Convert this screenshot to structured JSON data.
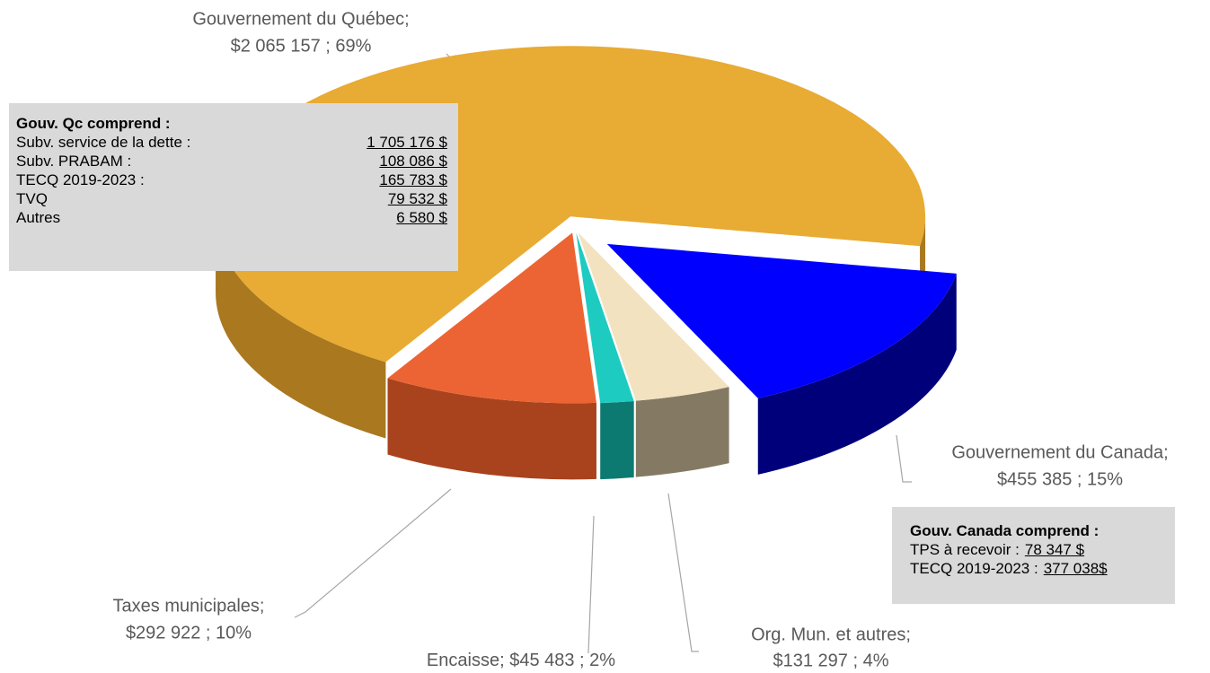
{
  "chart_data": {
    "type": "pie3d",
    "categories": [
      "Gouvernement du Québec;",
      "Gouvernement du Canada;",
      "Org. Mun. et autres;",
      "Encaisse;",
      "Taxes municipales;"
    ],
    "values": [
      2065157,
      455385,
      131297,
      45483,
      292922
    ],
    "value_labels": [
      "$2 065 157 ; 69%",
      "$455 385 ; 15%",
      "$131 297 ; 4%",
      "$45 483 ; 2%",
      "$292 922 ; 10%"
    ],
    "colors": [
      "#e8ab33",
      "#0000ff",
      "#f3e2c0",
      "#1ecbc0",
      "#ec6433"
    ],
    "side_colors": [
      "#a9781f",
      "#00007a",
      "#847a63",
      "#0d7a72",
      "#a8431e"
    ],
    "annotations": [
      {
        "title": "Gouv. Qc comprend :",
        "rows": [
          [
            "Subv. service de la dette :",
            "1 705 176 $"
          ],
          [
            "Subv. PRABAM :",
            "108 086 $"
          ],
          [
            "TECQ 2019-2023 :",
            "165 783 $"
          ],
          [
            "TVQ",
            "79 532 $"
          ],
          [
            "Autres",
            "6 580 $"
          ]
        ]
      },
      {
        "title": "Gouv. Canada comprend :",
        "rows": [
          [
            "TPS à recevoir :",
            "78 347 $"
          ],
          [
            "TECQ 2019-2023 :",
            "377 038$"
          ]
        ]
      }
    ]
  }
}
